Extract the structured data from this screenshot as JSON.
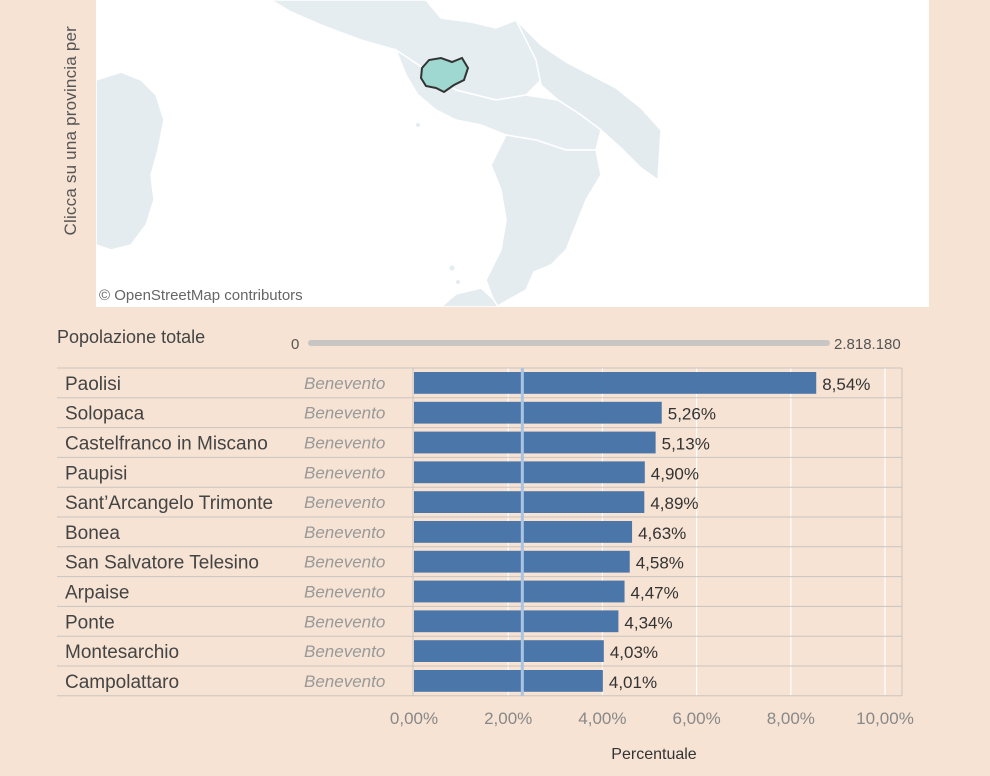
{
  "map": {
    "vertical_label": "Clicca su una provincia per",
    "credit": "© OpenStreetMap contributors"
  },
  "population_filter": {
    "label": "Popolazione totale",
    "min": "0",
    "max": "2.818.180"
  },
  "chart_data": {
    "type": "bar",
    "orientation": "horizontal",
    "categories": [
      "Paolisi",
      "Solopaca",
      "Castelfranco in Miscano",
      "Paupisi",
      "Sant’Arcangelo Trimonte",
      "Bonea",
      "San Salvatore Telesino",
      "Arpaise",
      "Ponte",
      "Montesarchio",
      "Campolattaro"
    ],
    "provinces": [
      "Benevento",
      "Benevento",
      "Benevento",
      "Benevento",
      "Benevento",
      "Benevento",
      "Benevento",
      "Benevento",
      "Benevento",
      "Benevento",
      "Benevento"
    ],
    "values": [
      8.54,
      5.26,
      5.13,
      4.9,
      4.89,
      4.63,
      4.58,
      4.47,
      4.34,
      4.03,
      4.01
    ],
    "value_labels": [
      "8,54%",
      "5,26%",
      "5,13%",
      "4,90%",
      "4,89%",
      "4,63%",
      "4,58%",
      "4,47%",
      "4,34%",
      "4,03%",
      "4,01%"
    ],
    "xlim": [
      0,
      10
    ],
    "xticks": [
      0,
      2,
      4,
      6,
      8,
      10
    ],
    "xtick_labels": [
      "0,00%",
      "2,00%",
      "4,00%",
      "6,00%",
      "8,00%",
      "10,00%"
    ],
    "reference_line": 2.3,
    "xlabel": "Percentuale",
    "bar_color": "#4b76a9"
  }
}
